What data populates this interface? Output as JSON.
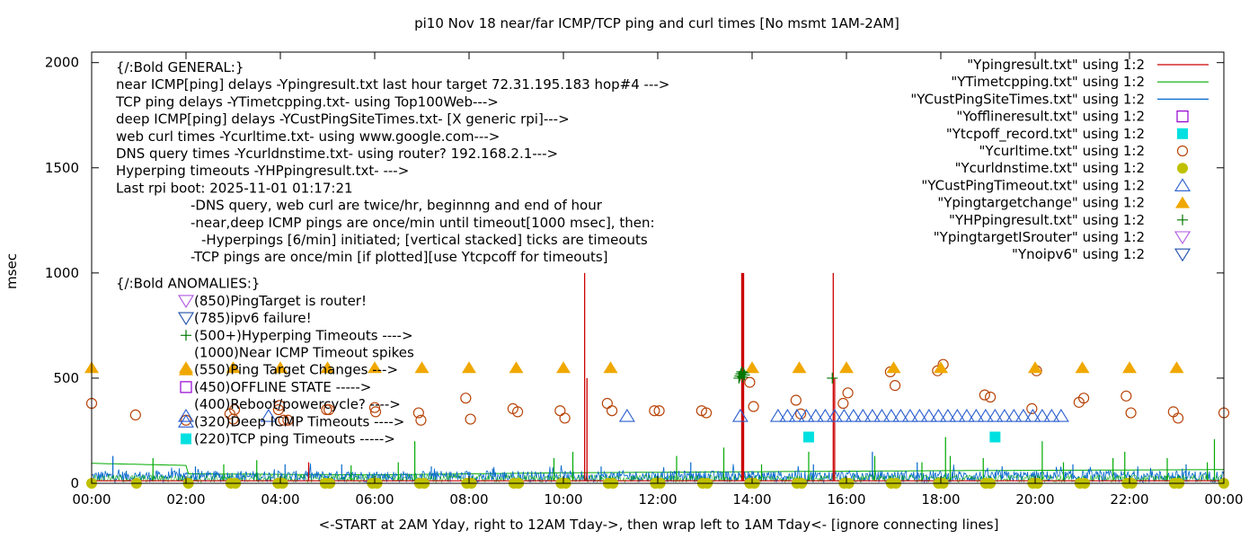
{
  "chart_data": {
    "type": "scatter",
    "title": "pi10 Nov 18  near/far ICMP/TCP ping and curl times [No msmt 1AM-2AM]",
    "xlabel": "<-START at 2AM Yday, right to 12AM Tday->, then wrap left to 1AM Tday<- [ignore connecting lines]",
    "ylabel": "msec",
    "xlim": [
      0,
      24
    ],
    "ylim": [
      0,
      2050
    ],
    "x_ticks": [
      "00:00",
      "02:00",
      "04:00",
      "06:00",
      "08:00",
      "10:00",
      "12:00",
      "14:00",
      "16:00",
      "18:00",
      "20:00",
      "22:00",
      "00:00"
    ],
    "y_ticks": [
      "0",
      "500",
      "1000",
      "1500",
      "2000"
    ],
    "x_tick_values": [
      0,
      2,
      4,
      6,
      8,
      10,
      12,
      14,
      16,
      18,
      20,
      22,
      24
    ],
    "y_tick_values": [
      0,
      500,
      1000,
      1500,
      2000
    ],
    "grid": false,
    "legend_position": "top-right",
    "series": [
      {
        "name": "\"Ypingresult.txt\" using 1:2",
        "style": "line",
        "color": "#cc0000",
        "baseline": 12,
        "spikes": [
          [
            10.45,
            1000
          ],
          [
            10.5,
            500
          ],
          [
            13.78,
            1000
          ],
          [
            13.8,
            1000
          ],
          [
            13.82,
            1000
          ],
          [
            15.72,
            1000
          ],
          [
            15.75,
            500
          ],
          [
            4.6,
            100
          ]
        ]
      },
      {
        "name": "\"YTimetcpping.txt\" using 1:2",
        "style": "line",
        "color": "#00aa00",
        "trend": [
          [
            0,
            95
          ],
          [
            2,
            85
          ],
          [
            2.05,
            45
          ],
          [
            6,
            40
          ],
          [
            10,
            50
          ],
          [
            14,
            55
          ],
          [
            18,
            60
          ],
          [
            24,
            65
          ]
        ],
        "spikes": [
          [
            1.3,
            120
          ],
          [
            2.8,
            90
          ],
          [
            3.5,
            110
          ],
          [
            5.5,
            85
          ],
          [
            6.5,
            100
          ],
          [
            6.85,
            200
          ],
          [
            9.8,
            120
          ],
          [
            10.2,
            150
          ],
          [
            12.4,
            130
          ],
          [
            13.4,
            170
          ],
          [
            14.2,
            90
          ],
          [
            15.2,
            150
          ],
          [
            16.6,
            130
          ],
          [
            17.6,
            100
          ],
          [
            18.1,
            220
          ],
          [
            18.2,
            130
          ],
          [
            18.9,
            120
          ],
          [
            20.15,
            200
          ],
          [
            20.6,
            100
          ],
          [
            21.65,
            120
          ],
          [
            21.9,
            150
          ],
          [
            23.8,
            210
          ],
          [
            23.65,
            100
          ],
          [
            22.8,
            120
          ]
        ]
      },
      {
        "name": "\"YCustPingSiteTimes.txt\" using 1:2",
        "style": "line",
        "color": "#0066cc",
        "base_range": [
          5,
          60
        ],
        "spikes": [
          [
            0.45,
            130
          ],
          [
            2.2,
            80
          ],
          [
            4.1,
            90
          ],
          [
            5.3,
            90
          ],
          [
            7.2,
            80
          ],
          [
            8.5,
            70
          ],
          [
            10.8,
            80
          ],
          [
            12.7,
            100
          ],
          [
            15.3,
            90
          ],
          [
            16.55,
            150
          ],
          [
            17.5,
            100
          ],
          [
            19.3,
            80
          ],
          [
            20.8,
            90
          ],
          [
            23.2,
            90
          ]
        ]
      },
      {
        "name": "\"Yofflineresult.txt\" using 1:2",
        "style": "open-square",
        "color": "#9400d3",
        "points": []
      },
      {
        "name": "\"Ytcpoff_record.txt\" using 1:2",
        "style": "filled-square",
        "color": "#00e0e0",
        "points": [
          [
            15.2,
            220
          ],
          [
            19.15,
            220
          ]
        ]
      },
      {
        "name": "\"Ycurltime.txt\" using 1:2",
        "style": "open-circle",
        "color": "#b8450a",
        "points": [
          [
            0,
            380
          ],
          [
            0.93,
            325
          ],
          [
            2.0,
            300
          ],
          [
            2.93,
            330
          ],
          [
            3,
            305
          ],
          [
            3.03,
            350
          ],
          [
            3.96,
            350
          ],
          [
            3.98,
            370
          ],
          [
            4.07,
            300
          ],
          [
            4.16,
            300
          ],
          [
            4.98,
            350
          ],
          [
            5.03,
            350
          ],
          [
            6.0,
            360
          ],
          [
            6.02,
            340
          ],
          [
            6.93,
            335
          ],
          [
            6.98,
            300
          ],
          [
            7.93,
            405
          ],
          [
            8.03,
            305
          ],
          [
            8.93,
            355
          ],
          [
            9.03,
            340
          ],
          [
            9.93,
            345
          ],
          [
            10.03,
            310
          ],
          [
            10.93,
            380
          ],
          [
            11.03,
            345
          ],
          [
            11.93,
            345
          ],
          [
            12.03,
            345
          ],
          [
            12.93,
            345
          ],
          [
            13.03,
            335
          ],
          [
            13.95,
            480
          ],
          [
            14.03,
            365
          ],
          [
            14.93,
            395
          ],
          [
            15.03,
            330
          ],
          [
            15.93,
            380
          ],
          [
            16.03,
            430
          ],
          [
            16.93,
            530
          ],
          [
            17.03,
            465
          ],
          [
            17.93,
            535
          ],
          [
            18.05,
            565
          ],
          [
            18.93,
            420
          ],
          [
            19.05,
            410
          ],
          [
            19.93,
            355
          ],
          [
            20.03,
            535
          ],
          [
            20.93,
            385
          ],
          [
            21.03,
            405
          ],
          [
            21.93,
            415
          ],
          [
            22.03,
            335
          ],
          [
            22.93,
            340
          ],
          [
            23.03,
            310
          ],
          [
            24,
            335
          ]
        ]
      },
      {
        "name": "\"Ycurldnstime.txt\" using 1:2",
        "style": "filled-circle",
        "color": "#c0c000",
        "points": [
          [
            0,
            0
          ],
          [
            0.95,
            0
          ],
          [
            2.05,
            0
          ],
          [
            2.95,
            0
          ],
          [
            3.05,
            0
          ],
          [
            3.95,
            0
          ],
          [
            4.05,
            0
          ],
          [
            4.95,
            0
          ],
          [
            5.05,
            0
          ],
          [
            5.95,
            0
          ],
          [
            6.05,
            0
          ],
          [
            6.95,
            0
          ],
          [
            7.05,
            0
          ],
          [
            7.95,
            0
          ],
          [
            8.05,
            0
          ],
          [
            8.95,
            0
          ],
          [
            9.05,
            0
          ],
          [
            9.95,
            0
          ],
          [
            10.05,
            0
          ],
          [
            10.95,
            0
          ],
          [
            11.05,
            0
          ],
          [
            11.95,
            0
          ],
          [
            12.05,
            0
          ],
          [
            12.95,
            0
          ],
          [
            13.05,
            0
          ],
          [
            13.95,
            0
          ],
          [
            14.05,
            0
          ],
          [
            14.95,
            0
          ],
          [
            15.05,
            0
          ],
          [
            15.95,
            0
          ],
          [
            16.05,
            0
          ],
          [
            16.95,
            0
          ],
          [
            17.05,
            0
          ],
          [
            17.95,
            0
          ],
          [
            18.05,
            0
          ],
          [
            18.95,
            0
          ],
          [
            19.05,
            0
          ],
          [
            19.95,
            0
          ],
          [
            20.05,
            0
          ],
          [
            20.95,
            0
          ],
          [
            21.05,
            0
          ],
          [
            21.95,
            0
          ],
          [
            22.05,
            0
          ],
          [
            22.95,
            0
          ],
          [
            23.05,
            0
          ],
          [
            24,
            0
          ]
        ]
      },
      {
        "name": "\"YCustPingTimeout.txt\" using 1:2",
        "style": "open-triangle-up",
        "color": "#2b5fcf",
        "points": [
          [
            2.0,
            320
          ],
          [
            3.75,
            320
          ],
          [
            11.35,
            320
          ],
          [
            13.75,
            320
          ]
        ],
        "band": {
          "from": 14.55,
          "to": 20.6,
          "y": 320
        }
      },
      {
        "name": "\"Ypingtargetchange\" using 1:2",
        "style": "filled-triangle-up",
        "color": "#f0a800",
        "points": [
          [
            0,
            550
          ],
          [
            2,
            550
          ],
          [
            3,
            550
          ],
          [
            4,
            550
          ],
          [
            5,
            550
          ],
          [
            6,
            550
          ],
          [
            7,
            550
          ],
          [
            8,
            550
          ],
          [
            9,
            550
          ],
          [
            10,
            550
          ],
          [
            11,
            550
          ],
          [
            14,
            550
          ],
          [
            15,
            550
          ],
          [
            16,
            550
          ],
          [
            17,
            550
          ],
          [
            18,
            550
          ],
          [
            20,
            550
          ],
          [
            21,
            550
          ],
          [
            22,
            550
          ],
          [
            23,
            550
          ]
        ]
      },
      {
        "name": "\"YHPpingresult.txt\" using 1:2",
        "style": "plus",
        "color": "#007700",
        "points": [
          [
            13.72,
            500
          ],
          [
            13.74,
            510
          ],
          [
            13.76,
            520
          ],
          [
            13.78,
            530
          ],
          [
            13.8,
            505
          ],
          [
            13.82,
            525
          ],
          [
            13.84,
            515
          ],
          [
            15.7,
            500
          ]
        ]
      },
      {
        "name": "\"YpingtargetISrouter\" using 1:2",
        "style": "open-triangle-down",
        "color": "#b056e0",
        "points": []
      },
      {
        "name": "\"Ynoipv6\" using 1:2",
        "style": "open-triangle-down",
        "color": "#1f4fa8",
        "points": []
      }
    ],
    "annotation": {
      "header_general": "{/:Bold GENERAL:}",
      "general_lines": [
        "near ICMP[ping] delays -Ypingresult.txt last hour target 72.31.195.183 hop#4 --->",
        "TCP ping delays -YTimetcpping.txt- using Top100Web--->",
        "deep ICMP[ping] delays -YCustPingSiteTimes.txt- [X generic rpi]--->",
        "web curl times -Ycurltime.txt- using www.google.com--->",
        "DNS query times -Ycurldnstime.txt- using router? 192.168.2.1--->",
        "Hyperping timeouts -YHPpingresult.txt- --->",
        "Last rpi boot: 2025-11-01 01:17:21"
      ],
      "notes": [
        "-DNS query, web curl are twice/hr, beginnng and end of hour",
        "-near,deep ICMP pings are once/min until timeout[1000 msec], then:",
        "-Hyperpings [6/min] initiated; [vertical stacked] ticks are timeouts",
        "-TCP pings are once/min [if plotted][use Ytcpcoff for timeouts]"
      ],
      "header_anomalies": "{/:Bold ANOMALIES:}",
      "anomalies": [
        {
          "symbol": "open-triangle-down",
          "color": "#b056e0",
          "text": "(850)PingTarget is router!"
        },
        {
          "symbol": "open-triangle-down",
          "color": "#1f4fa8",
          "text": "(785)ipv6 failure!"
        },
        {
          "symbol": "plus",
          "color": "#007700",
          "text": "(500+)Hyperping Timeouts ---->"
        },
        {
          "symbol": "none",
          "color": "#000000",
          "text": "(1000)Near ICMP Timeout spikes"
        },
        {
          "symbol": "filled-triangle-up",
          "color": "#f0a800",
          "text": "(550)Ping Target Changes --->"
        },
        {
          "symbol": "open-square",
          "color": "#9400d3",
          "text": "(450)OFFLINE STATE ----->"
        },
        {
          "symbol": "none",
          "color": "#000000",
          "text": "(400)Reboot/powercycle? ---->"
        },
        {
          "symbol": "open-triangle-up",
          "color": "#2b5fcf",
          "text": "(320)Deep ICMP Timeouts ---->"
        },
        {
          "symbol": "filled-square",
          "color": "#00e0e0",
          "text": "(220)TCP ping Timeouts ----->"
        }
      ]
    }
  }
}
